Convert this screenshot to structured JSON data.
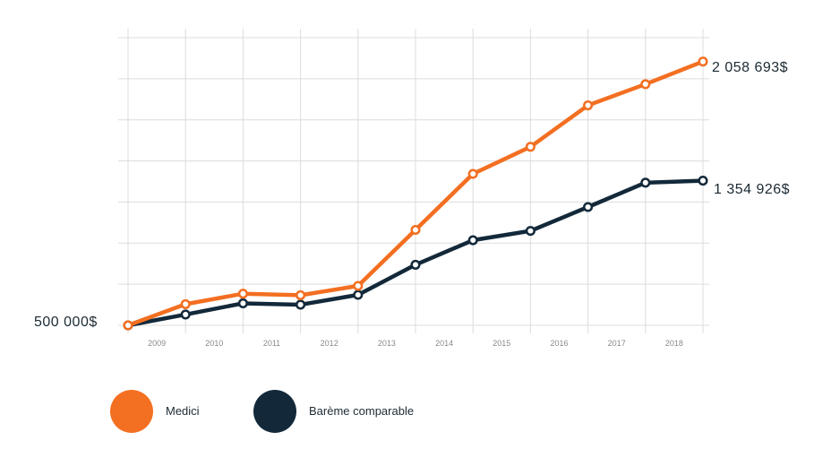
{
  "chart_data": {
    "type": "line",
    "title": "",
    "xlabel": "",
    "ylabel": "",
    "x": [
      "",
      "2009",
      "2010",
      "2011",
      "2012",
      "2013",
      "2014",
      "2015",
      "2016",
      "2017",
      "2018"
    ],
    "ylim": [
      500000,
      2200000
    ],
    "grid": true,
    "legend": "bottom-left",
    "series": [
      {
        "name": "Medici",
        "color": "#f36f21",
        "values": [
          500000,
          625000,
          687000,
          678000,
          733000,
          1064000,
          1395000,
          1555000,
          1800000,
          1925000,
          2058693
        ]
      },
      {
        "name": "Barème comparable",
        "color": "#13293a",
        "values": [
          500000,
          564000,
          630000,
          622000,
          680000,
          858000,
          1003000,
          1058000,
          1199000,
          1343000,
          1354926
        ]
      }
    ],
    "annotations": {
      "start": "500 000$",
      "end_medici": "2 058 693$",
      "end_bareme": "1 354 926$"
    }
  }
}
